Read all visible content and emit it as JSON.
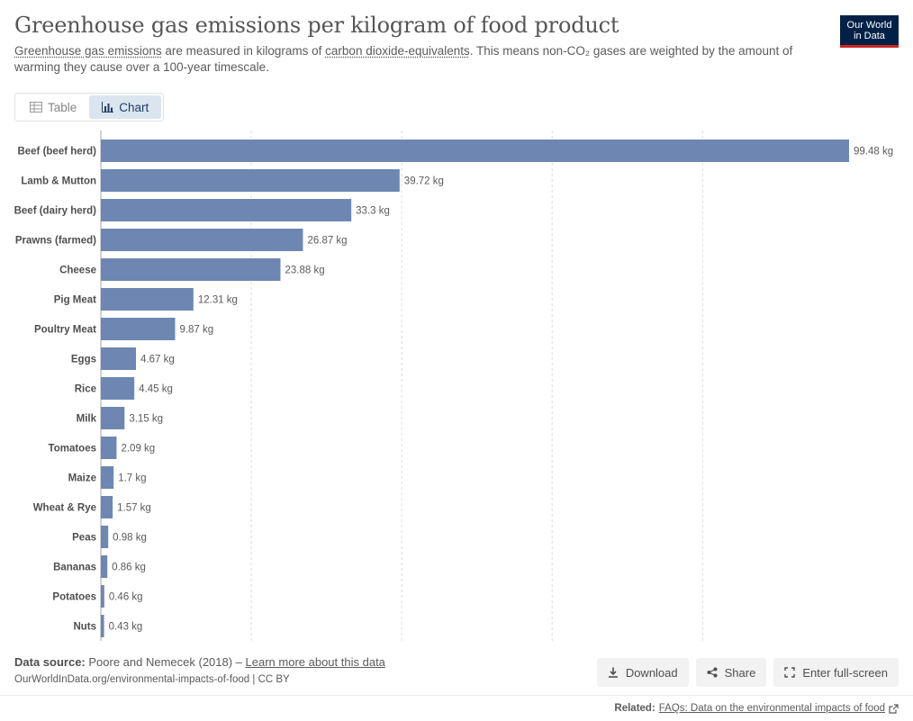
{
  "header": {
    "title": "Greenhouse gas emissions per kilogram of food product",
    "subtitle_link1": "Greenhouse gas emissions",
    "subtitle_text1": " are measured in kilograms of ",
    "subtitle_link2": "carbon dioxide-equivalents",
    "subtitle_text2": ". This means non-CO₂ gases are weighted by the amount of warming they cause over a 100-year timescale."
  },
  "logo": {
    "line1": "Our World",
    "line2": "in Data"
  },
  "tabs": [
    {
      "label": "Table",
      "icon": "table-icon",
      "active": false
    },
    {
      "label": "Chart",
      "icon": "bar-chart-icon",
      "active": true
    }
  ],
  "chart_data": {
    "type": "bar",
    "orientation": "horizontal",
    "categories": [
      "Beef (beef herd)",
      "Lamb & Mutton",
      "Beef (dairy herd)",
      "Prawns (farmed)",
      "Cheese",
      "Pig Meat",
      "Poultry Meat",
      "Eggs",
      "Rice",
      "Milk",
      "Tomatoes",
      "Maize",
      "Wheat & Rye",
      "Peas",
      "Bananas",
      "Potatoes",
      "Nuts"
    ],
    "values": [
      99.48,
      39.72,
      33.3,
      26.87,
      23.88,
      12.31,
      9.87,
      4.67,
      4.45,
      3.15,
      2.09,
      1.7,
      1.57,
      0.98,
      0.86,
      0.46,
      0.43
    ],
    "value_labels": [
      "99.48 kg",
      "39.72 kg",
      "33.3 kg",
      "26.87 kg",
      "23.88 kg",
      "12.31 kg",
      "9.87 kg",
      "4.67 kg",
      "4.45 kg",
      "3.15 kg",
      "2.09 kg",
      "1.7 kg",
      "1.57 kg",
      "0.98 kg",
      "0.86 kg",
      "0.46 kg",
      "0.43 kg"
    ],
    "unit": "kg",
    "xlim": [
      0,
      100
    ],
    "gridlines": [
      0,
      20,
      40,
      60,
      80
    ],
    "grid": true,
    "bar_color": "#6d87b2"
  },
  "footer": {
    "source_label": "Data source:",
    "source_text": " Poore and Nemecek (2018) – ",
    "source_link": "Learn more about this data",
    "url": "OurWorldInData.org/environmental-impacts-of-food | CC BY"
  },
  "actions": [
    {
      "label": "Download",
      "icon": "download-icon"
    },
    {
      "label": "Share",
      "icon": "share-icon"
    },
    {
      "label": "Enter full-screen",
      "icon": "fullscreen-icon"
    }
  ],
  "related": {
    "label": "Related:",
    "link": "FAQs: Data on the environmental impacts of food"
  },
  "colors": {
    "accent": "#002147",
    "logo_underline": "#ce261e",
    "active_tab_bg": "#dbe5f0"
  }
}
